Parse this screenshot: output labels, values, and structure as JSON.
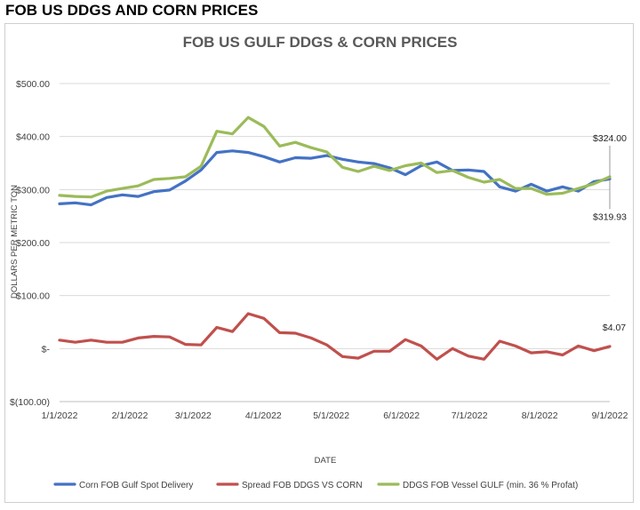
{
  "page": {
    "heading": "FOB US DDGS AND CORN PRICES"
  },
  "chart_data": {
    "type": "line",
    "title": "FOB US GULF DDGS & CORN PRICES",
    "xlabel": "DATE",
    "ylabel": "DOLLARS PER METRIC TON",
    "ylim": [
      -100,
      500
    ],
    "y_ticks": [
      -100,
      0,
      100,
      200,
      300,
      400,
      500
    ],
    "y_tick_labels": [
      "$(100.00)",
      "$-",
      "$100.00",
      "$200.00",
      "$300.00",
      "$400.00",
      "$500.00"
    ],
    "x_tick_labels": [
      "1/1/2022",
      "2/1/2022",
      "3/1/2022",
      "4/1/2022",
      "5/1/2022",
      "6/1/2022",
      "7/1/2022",
      "8/1/2022",
      "9/1/2022"
    ],
    "x_tick_positions": [
      0,
      4.43,
      8.43,
      12.86,
      17.14,
      21.57,
      25.86,
      30.29,
      34.71
    ],
    "xlim": [
      0,
      34.71
    ],
    "gridlines": "horizontal",
    "legend_position": "bottom",
    "series": [
      {
        "name": "Corn FOB Gulf Spot Delivery",
        "color": "#4472c4",
        "values": [
          273,
          275,
          271,
          285,
          290,
          287,
          296,
          299,
          316,
          337,
          370,
          373,
          370,
          362,
          352,
          360,
          359,
          364,
          357,
          352,
          349,
          341,
          328,
          345,
          352,
          336,
          337,
          334,
          305,
          297,
          310,
          297,
          305,
          297,
          315,
          320
        ]
      },
      {
        "name": "Spread FOB DDGS VS CORN",
        "color": "#c0504d",
        "values": [
          16,
          12,
          16,
          12,
          12,
          20,
          23,
          22,
          8,
          7,
          40,
          32,
          66,
          57,
          30,
          29,
          20,
          7,
          -15,
          -18,
          -5,
          -5,
          17,
          5,
          -20,
          0,
          -14,
          -20,
          14,
          5,
          -8,
          -6,
          -12,
          5,
          -4,
          4
        ]
      },
      {
        "name": "DDGS FOB Vessel GULF  (min. 36 % Profat)",
        "color": "#9bbb59",
        "values": [
          289,
          287,
          286,
          297,
          302,
          307,
          319,
          321,
          324,
          344,
          410,
          405,
          436,
          419,
          382,
          389,
          379,
          371,
          342,
          334,
          344,
          336,
          345,
          350,
          332,
          336,
          323,
          314,
          319,
          302,
          302,
          291,
          293,
          302,
          311,
          324
        ]
      }
    ],
    "annotations": [
      {
        "text": "$324.00",
        "series": 2,
        "index": 35
      },
      {
        "text": "$319.93",
        "series": 0,
        "index": 35
      },
      {
        "text": "$4.07",
        "series": 1,
        "index": 35
      }
    ]
  }
}
